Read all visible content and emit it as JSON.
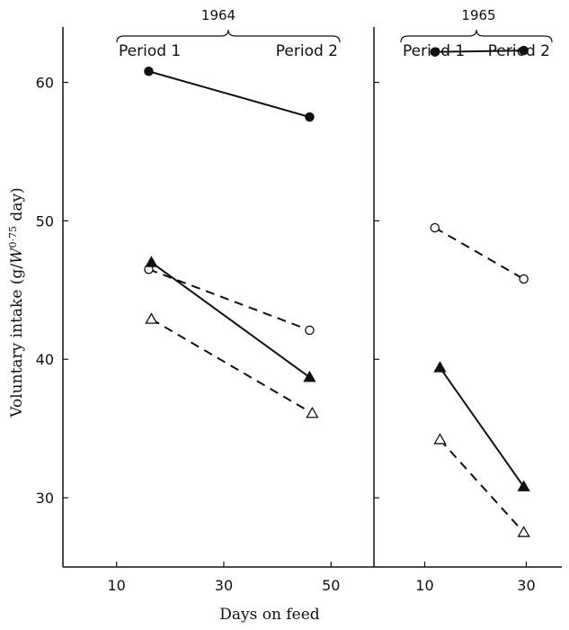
{
  "chart_data": [
    {
      "type": "line",
      "title": "1964",
      "period_labels": [
        "Period 1",
        "Period 2"
      ],
      "xlabel": "Days on feed",
      "ylabel": "Voluntary intake (g/W^0.75 day)",
      "ylabel_parts": {
        "pre": "Voluntary intake (g/",
        "base": "W",
        "exp": "0·75",
        "post": " day)"
      },
      "xlim": [
        0,
        58
      ],
      "ylim": [
        25,
        64
      ],
      "xticks": [
        10,
        30,
        50
      ],
      "yticks": [
        30,
        40,
        50,
        60
      ],
      "ytick_labels": [
        "30",
        "40",
        "50",
        "60"
      ],
      "grid": false,
      "legend": "none",
      "series": [
        {
          "marker": "filled-circle",
          "line": "solid",
          "x": [
            16,
            46
          ],
          "y": [
            60.8,
            57.5
          ]
        },
        {
          "marker": "open-circle",
          "line": "dashed",
          "x": [
            16,
            46
          ],
          "y": [
            46.5,
            42.1
          ]
        },
        {
          "marker": "filled-triangle",
          "line": "solid",
          "x": [
            16.5,
            46
          ],
          "y": [
            47.0,
            38.7
          ]
        },
        {
          "marker": "open-triangle",
          "line": "dashed",
          "x": [
            16.5,
            46.5
          ],
          "y": [
            42.9,
            36.1
          ]
        }
      ]
    },
    {
      "type": "line",
      "title": "1965",
      "period_labels": [
        "Period 1",
        "Period 2"
      ],
      "xlabel": "Days on feed",
      "ylabel": "",
      "xlim": [
        0,
        37
      ],
      "ylim": [
        25,
        64
      ],
      "xticks": [
        10,
        30
      ],
      "yticks": [
        30,
        40,
        50,
        60
      ],
      "ytick_labels": [],
      "grid": false,
      "legend": "none",
      "series": [
        {
          "marker": "filled-circle",
          "line": "solid",
          "x": [
            12,
            29.5
          ],
          "y": [
            62.2,
            62.3
          ]
        },
        {
          "marker": "open-circle",
          "line": "dashed",
          "x": [
            12,
            29.5
          ],
          "y": [
            49.5,
            45.8
          ]
        },
        {
          "marker": "filled-triangle",
          "line": "solid",
          "x": [
            13,
            29.5
          ],
          "y": [
            39.4,
            30.8
          ]
        },
        {
          "marker": "open-triangle",
          "line": "dashed",
          "x": [
            13,
            29.5
          ],
          "y": [
            34.2,
            27.5
          ]
        }
      ]
    }
  ]
}
